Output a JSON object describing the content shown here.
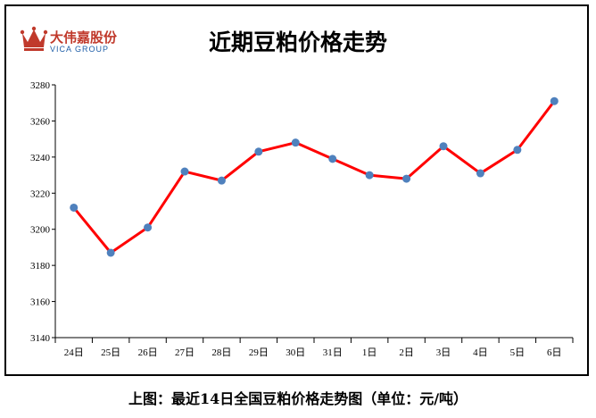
{
  "logo": {
    "name_cn": "大伟嘉股份",
    "name_en": "VICA GROUP"
  },
  "caption": "上图：最近14日全国豆粕价格走势图（单位：元/吨）",
  "colors": {
    "line": "#ff0000",
    "marker": "#4f81bd",
    "logo_red": "#c0392b",
    "logo_blue": "#1f5fa8"
  },
  "chart_data": {
    "type": "line",
    "title": "近期豆粕价格走势",
    "xlabel": "",
    "ylabel": "",
    "categories": [
      "24日",
      "25日",
      "26日",
      "27日",
      "28日",
      "29日",
      "30日",
      "31日",
      "1日",
      "2日",
      "3日",
      "4日",
      "5日",
      "6日"
    ],
    "series": [
      {
        "values": [
          3212,
          3187,
          3201,
          3232,
          3227,
          3243,
          3248,
          3239,
          3230,
          3228,
          3246,
          3231,
          3244,
          3271
        ]
      }
    ],
    "ylim": [
      3140,
      3280
    ],
    "yticks": [
      3140,
      3160,
      3180,
      3200,
      3220,
      3240,
      3260,
      3280
    ],
    "grid": false,
    "legend": "none"
  }
}
